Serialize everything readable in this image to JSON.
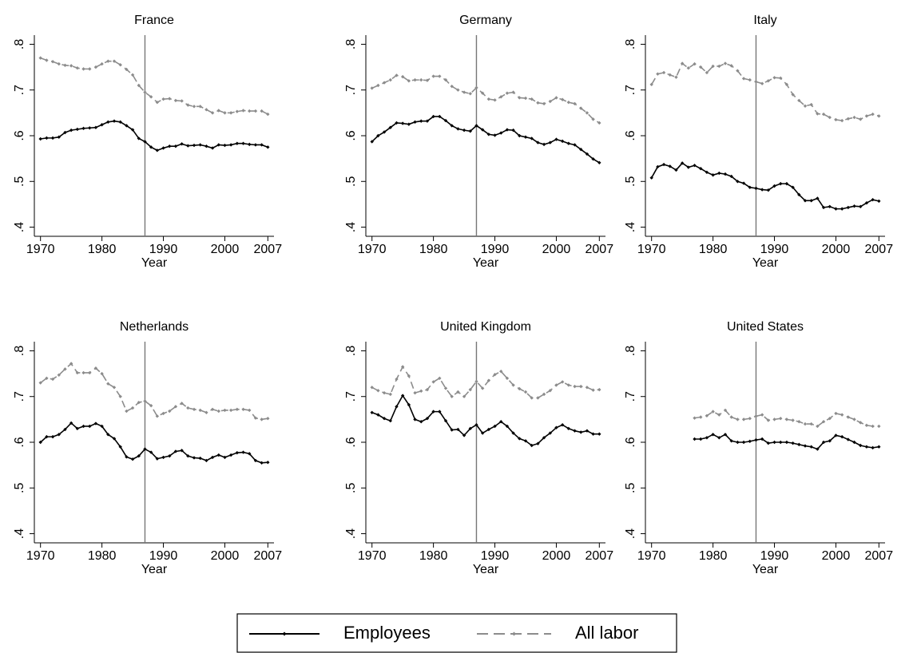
{
  "chart_data": [
    {
      "type": "line",
      "title": "France",
      "xlabel": "Year",
      "vline": 1987,
      "x": [
        1970,
        1971,
        1972,
        1973,
        1974,
        1975,
        1976,
        1977,
        1978,
        1979,
        1980,
        1981,
        1982,
        1983,
        1984,
        1985,
        1986,
        1987,
        1988,
        1989,
        1990,
        1991,
        1992,
        1993,
        1994,
        1995,
        1996,
        1997,
        1998,
        1999,
        2000,
        2001,
        2002,
        2003,
        2004,
        2005,
        2006,
        2007
      ],
      "xlim": [
        1969,
        2008
      ],
      "xticks": [
        1970,
        1980,
        1990,
        2000,
        2007
      ],
      "ylim": [
        0.38,
        0.82
      ],
      "yticks": [
        {
          "value": 0.4,
          "label": ".4"
        },
        {
          "value": 0.5,
          "label": ".5"
        },
        {
          "value": 0.6,
          "label": ".6"
        },
        {
          "value": 0.7,
          "label": ".7"
        },
        {
          "value": 0.8,
          "label": ".8"
        }
      ],
      "legend": "bottom",
      "series": [
        {
          "name": "Employees",
          "color": "#000000",
          "line_style": "solid",
          "values": [
            0.593,
            0.595,
            0.595,
            0.597,
            0.607,
            0.612,
            0.614,
            0.616,
            0.617,
            0.618,
            0.624,
            0.63,
            0.632,
            0.63,
            0.622,
            0.613,
            0.594,
            0.587,
            0.575,
            0.568,
            0.573,
            0.577,
            0.577,
            0.582,
            0.578,
            0.579,
            0.58,
            0.577,
            0.573,
            0.58,
            0.579,
            0.58,
            0.583,
            0.583,
            0.581,
            0.58,
            0.58,
            0.575
          ]
        },
        {
          "name": "All labor",
          "color": "#8c8c8c",
          "line_style": "dashed",
          "values": [
            0.77,
            0.765,
            0.762,
            0.757,
            0.754,
            0.753,
            0.748,
            0.746,
            0.746,
            0.75,
            0.757,
            0.763,
            0.763,
            0.755,
            0.745,
            0.733,
            0.71,
            0.695,
            0.685,
            0.673,
            0.68,
            0.681,
            0.677,
            0.676,
            0.667,
            0.664,
            0.664,
            0.657,
            0.65,
            0.655,
            0.65,
            0.65,
            0.653,
            0.655,
            0.654,
            0.654,
            0.654,
            0.647
          ]
        }
      ]
    },
    {
      "type": "line",
      "title": "Germany",
      "xlabel": "Year",
      "vline": 1987,
      "x": [
        1970,
        1971,
        1972,
        1973,
        1974,
        1975,
        1976,
        1977,
        1978,
        1979,
        1980,
        1981,
        1982,
        1983,
        1984,
        1985,
        1986,
        1987,
        1988,
        1989,
        1990,
        1991,
        1992,
        1993,
        1994,
        1995,
        1996,
        1997,
        1998,
        1999,
        2000,
        2001,
        2002,
        2003,
        2004,
        2005,
        2006,
        2007
      ],
      "xlim": [
        1969,
        2008
      ],
      "xticks": [
        1970,
        1980,
        1990,
        2000,
        2007
      ],
      "ylim": [
        0.38,
        0.82
      ],
      "yticks": [
        {
          "value": 0.4,
          "label": ".4"
        },
        {
          "value": 0.5,
          "label": ".5"
        },
        {
          "value": 0.6,
          "label": ".6"
        },
        {
          "value": 0.7,
          "label": ".7"
        },
        {
          "value": 0.8,
          "label": ".8"
        }
      ],
      "series": [
        {
          "name": "Employees",
          "color": "#000000",
          "line_style": "solid",
          "values": [
            0.587,
            0.6,
            0.608,
            0.618,
            0.628,
            0.627,
            0.625,
            0.63,
            0.632,
            0.632,
            0.642,
            0.642,
            0.633,
            0.622,
            0.615,
            0.612,
            0.61,
            0.622,
            0.613,
            0.603,
            0.601,
            0.606,
            0.613,
            0.612,
            0.6,
            0.597,
            0.594,
            0.585,
            0.581,
            0.585,
            0.592,
            0.588,
            0.583,
            0.58,
            0.57,
            0.56,
            0.549,
            0.541
          ]
        },
        {
          "name": "All labor",
          "color": "#8c8c8c",
          "line_style": "dashed",
          "values": [
            0.704,
            0.71,
            0.716,
            0.722,
            0.732,
            0.729,
            0.72,
            0.722,
            0.722,
            0.721,
            0.73,
            0.73,
            0.722,
            0.708,
            0.7,
            0.695,
            0.692,
            0.705,
            0.693,
            0.68,
            0.678,
            0.685,
            0.693,
            0.695,
            0.683,
            0.682,
            0.68,
            0.672,
            0.67,
            0.675,
            0.683,
            0.679,
            0.673,
            0.67,
            0.66,
            0.65,
            0.636,
            0.628
          ]
        }
      ]
    },
    {
      "type": "line",
      "title": "Italy",
      "xlabel": "Year",
      "vline": 1987,
      "x": [
        1970,
        1971,
        1972,
        1973,
        1974,
        1975,
        1976,
        1977,
        1978,
        1979,
        1980,
        1981,
        1982,
        1983,
        1984,
        1985,
        1986,
        1987,
        1988,
        1989,
        1990,
        1991,
        1992,
        1993,
        1994,
        1995,
        1996,
        1997,
        1998,
        1999,
        2000,
        2001,
        2002,
        2003,
        2004,
        2005,
        2006,
        2007
      ],
      "xlim": [
        1969,
        2008
      ],
      "xticks": [
        1970,
        1980,
        1990,
        2000,
        2007
      ],
      "ylim": [
        0.38,
        0.82
      ],
      "yticks": [
        {
          "value": 0.4,
          "label": ".4"
        },
        {
          "value": 0.5,
          "label": ".5"
        },
        {
          "value": 0.6,
          "label": ".6"
        },
        {
          "value": 0.7,
          "label": ".7"
        },
        {
          "value": 0.8,
          "label": ".8"
        }
      ],
      "series": [
        {
          "name": "Employees",
          "color": "#000000",
          "line_style": "solid",
          "values": [
            0.508,
            0.532,
            0.537,
            0.533,
            0.525,
            0.54,
            0.531,
            0.535,
            0.528,
            0.52,
            0.514,
            0.518,
            0.516,
            0.511,
            0.5,
            0.496,
            0.487,
            0.485,
            0.482,
            0.481,
            0.49,
            0.495,
            0.495,
            0.487,
            0.471,
            0.458,
            0.458,
            0.463,
            0.443,
            0.445,
            0.44,
            0.44,
            0.443,
            0.446,
            0.445,
            0.453,
            0.46,
            0.457
          ]
        },
        {
          "name": "All labor",
          "color": "#8c8c8c",
          "line_style": "dashed",
          "values": [
            0.712,
            0.735,
            0.738,
            0.733,
            0.728,
            0.758,
            0.748,
            0.757,
            0.75,
            0.738,
            0.752,
            0.752,
            0.758,
            0.753,
            0.742,
            0.725,
            0.722,
            0.718,
            0.714,
            0.72,
            0.727,
            0.726,
            0.712,
            0.69,
            0.677,
            0.665,
            0.668,
            0.648,
            0.647,
            0.64,
            0.635,
            0.633,
            0.637,
            0.64,
            0.636,
            0.643,
            0.647,
            0.643
          ]
        }
      ]
    },
    {
      "type": "line",
      "title": "Netherlands",
      "xlabel": "Year",
      "vline": 1987,
      "x": [
        1970,
        1971,
        1972,
        1973,
        1974,
        1975,
        1976,
        1977,
        1978,
        1979,
        1980,
        1981,
        1982,
        1983,
        1984,
        1985,
        1986,
        1987,
        1988,
        1989,
        1990,
        1991,
        1992,
        1993,
        1994,
        1995,
        1996,
        1997,
        1998,
        1999,
        2000,
        2001,
        2002,
        2003,
        2004,
        2005,
        2006,
        2007
      ],
      "xlim": [
        1969,
        2008
      ],
      "xticks": [
        1970,
        1980,
        1990,
        2000,
        2007
      ],
      "ylim": [
        0.38,
        0.82
      ],
      "yticks": [
        {
          "value": 0.4,
          "label": ".4"
        },
        {
          "value": 0.5,
          "label": ".5"
        },
        {
          "value": 0.6,
          "label": ".6"
        },
        {
          "value": 0.7,
          "label": ".7"
        },
        {
          "value": 0.8,
          "label": ".8"
        }
      ],
      "series": [
        {
          "name": "Employees",
          "color": "#000000",
          "line_style": "solid",
          "values": [
            0.6,
            0.612,
            0.612,
            0.617,
            0.628,
            0.642,
            0.63,
            0.635,
            0.635,
            0.641,
            0.635,
            0.617,
            0.608,
            0.59,
            0.568,
            0.563,
            0.57,
            0.585,
            0.578,
            0.564,
            0.567,
            0.57,
            0.58,
            0.582,
            0.57,
            0.566,
            0.565,
            0.56,
            0.567,
            0.572,
            0.567,
            0.572,
            0.577,
            0.578,
            0.575,
            0.56,
            0.555,
            0.556
          ]
        },
        {
          "name": "All labor",
          "color": "#8c8c8c",
          "line_style": "dashed",
          "values": [
            0.73,
            0.74,
            0.738,
            0.747,
            0.76,
            0.772,
            0.752,
            0.752,
            0.752,
            0.762,
            0.75,
            0.728,
            0.72,
            0.7,
            0.668,
            0.675,
            0.687,
            0.69,
            0.68,
            0.657,
            0.663,
            0.668,
            0.678,
            0.685,
            0.675,
            0.672,
            0.67,
            0.665,
            0.672,
            0.668,
            0.67,
            0.67,
            0.672,
            0.672,
            0.67,
            0.653,
            0.65,
            0.652
          ]
        }
      ]
    },
    {
      "type": "line",
      "title": "United Kingdom",
      "xlabel": "Year",
      "vline": 1987,
      "x": [
        1970,
        1971,
        1972,
        1973,
        1974,
        1975,
        1976,
        1977,
        1978,
        1979,
        1980,
        1981,
        1982,
        1983,
        1984,
        1985,
        1986,
        1987,
        1988,
        1989,
        1990,
        1991,
        1992,
        1993,
        1994,
        1995,
        1996,
        1997,
        1998,
        1999,
        2000,
        2001,
        2002,
        2003,
        2004,
        2005,
        2006,
        2007
      ],
      "xlim": [
        1969,
        2008
      ],
      "xticks": [
        1970,
        1980,
        1990,
        2000,
        2007
      ],
      "ylim": [
        0.38,
        0.82
      ],
      "yticks": [
        {
          "value": 0.4,
          "label": ".4"
        },
        {
          "value": 0.5,
          "label": ".5"
        },
        {
          "value": 0.6,
          "label": ".6"
        },
        {
          "value": 0.7,
          "label": ".7"
        },
        {
          "value": 0.8,
          "label": ".8"
        }
      ],
      "series": [
        {
          "name": "Employees",
          "color": "#000000",
          "line_style": "solid",
          "values": [
            0.665,
            0.66,
            0.652,
            0.647,
            0.678,
            0.702,
            0.682,
            0.65,
            0.645,
            0.652,
            0.667,
            0.667,
            0.647,
            0.627,
            0.628,
            0.615,
            0.63,
            0.638,
            0.62,
            0.628,
            0.635,
            0.645,
            0.635,
            0.62,
            0.608,
            0.603,
            0.593,
            0.597,
            0.61,
            0.62,
            0.632,
            0.638,
            0.63,
            0.625,
            0.622,
            0.625,
            0.618,
            0.618
          ]
        },
        {
          "name": "All labor",
          "color": "#8c8c8c",
          "line_style": "dashed",
          "values": [
            0.72,
            0.713,
            0.708,
            0.705,
            0.738,
            0.765,
            0.745,
            0.708,
            0.712,
            0.715,
            0.732,
            0.74,
            0.718,
            0.7,
            0.71,
            0.7,
            0.715,
            0.733,
            0.718,
            0.735,
            0.748,
            0.755,
            0.74,
            0.725,
            0.717,
            0.71,
            0.697,
            0.697,
            0.705,
            0.713,
            0.725,
            0.732,
            0.725,
            0.722,
            0.722,
            0.72,
            0.714,
            0.715
          ]
        }
      ]
    },
    {
      "type": "line",
      "title": "United States",
      "xlabel": "Year",
      "vline": 1987,
      "x": [
        1970,
        1971,
        1972,
        1973,
        1974,
        1975,
        1976,
        1977,
        1978,
        1979,
        1980,
        1981,
        1982,
        1983,
        1984,
        1985,
        1986,
        1987,
        1988,
        1989,
        1990,
        1991,
        1992,
        1993,
        1994,
        1995,
        1996,
        1997,
        1998,
        1999,
        2000,
        2001,
        2002,
        2003,
        2004,
        2005,
        2006,
        2007
      ],
      "xlim": [
        1969,
        2008
      ],
      "xticks": [
        1970,
        1980,
        1990,
        2000,
        2007
      ],
      "ylim": [
        0.38,
        0.82
      ],
      "yticks": [
        {
          "value": 0.4,
          "label": ".4"
        },
        {
          "value": 0.5,
          "label": ".5"
        },
        {
          "value": 0.6,
          "label": ".6"
        },
        {
          "value": 0.7,
          "label": ".7"
        },
        {
          "value": 0.8,
          "label": ".8"
        }
      ],
      "series": [
        {
          "name": "Employees",
          "color": "#000000",
          "line_style": "solid",
          "values": [
            null,
            null,
            null,
            null,
            null,
            null,
            null,
            0.607,
            0.607,
            0.61,
            0.617,
            0.61,
            0.617,
            0.603,
            0.6,
            0.6,
            0.602,
            0.605,
            0.607,
            0.598,
            0.6,
            0.6,
            0.6,
            0.598,
            0.595,
            0.592,
            0.59,
            0.585,
            0.6,
            0.603,
            0.615,
            0.612,
            0.606,
            0.6,
            0.593,
            0.59,
            0.588,
            0.59
          ]
        },
        {
          "name": "All labor",
          "color": "#8c8c8c",
          "line_style": "dashed",
          "values": [
            null,
            null,
            null,
            null,
            null,
            null,
            null,
            0.653,
            0.655,
            0.658,
            0.667,
            0.66,
            0.67,
            0.655,
            0.65,
            0.65,
            0.652,
            0.657,
            0.66,
            0.648,
            0.65,
            0.652,
            0.65,
            0.648,
            0.645,
            0.64,
            0.64,
            0.635,
            0.645,
            0.652,
            0.663,
            0.66,
            0.655,
            0.65,
            0.643,
            0.637,
            0.635,
            0.635
          ]
        }
      ]
    }
  ]
}
